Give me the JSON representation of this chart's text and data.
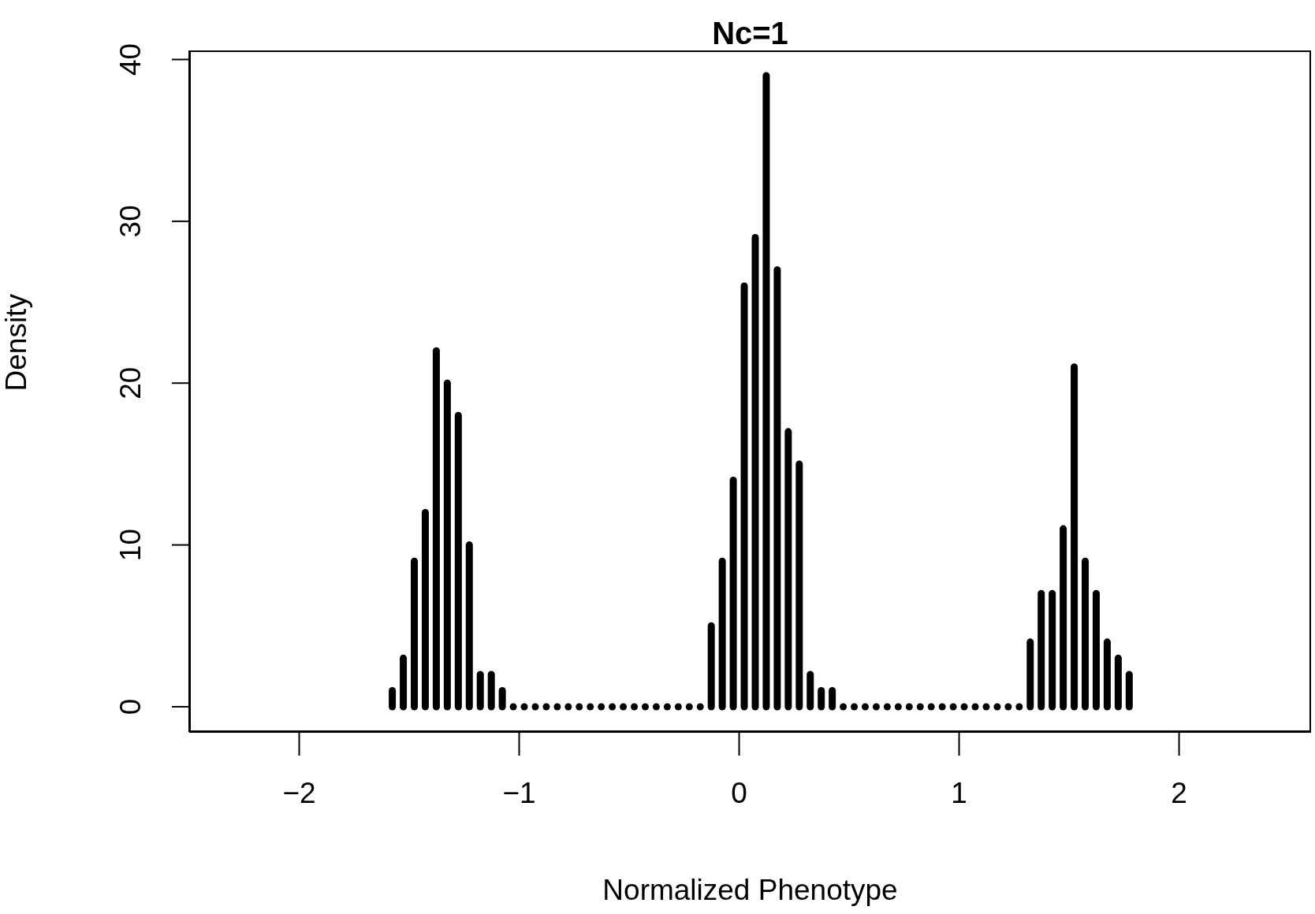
{
  "chart_data": {
    "type": "bar",
    "title": "Nc=1",
    "xlabel": "Normalized Phenotype",
    "ylabel": "Density",
    "x": [
      -1.575,
      -1.525,
      -1.475,
      -1.425,
      -1.375,
      -1.325,
      -1.275,
      -1.225,
      -1.175,
      -1.125,
      -1.075,
      -1.025,
      -0.975,
      -0.925,
      -0.875,
      -0.825,
      -0.775,
      -0.725,
      -0.675,
      -0.625,
      -0.575,
      -0.525,
      -0.475,
      -0.425,
      -0.375,
      -0.325,
      -0.275,
      -0.225,
      -0.175,
      -0.125,
      -0.075,
      -0.025,
      0.025,
      0.075,
      0.125,
      0.175,
      0.225,
      0.275,
      0.325,
      0.375,
      0.425,
      0.475,
      0.525,
      0.575,
      0.625,
      0.675,
      0.725,
      0.775,
      0.825,
      0.875,
      0.925,
      0.975,
      1.025,
      1.075,
      1.125,
      1.175,
      1.225,
      1.275,
      1.325,
      1.375,
      1.425,
      1.475,
      1.525,
      1.575,
      1.625,
      1.675,
      1.725,
      1.775
    ],
    "values": [
      1,
      3,
      9,
      12,
      22,
      20,
      18,
      10,
      2,
      2,
      1,
      0,
      0,
      0,
      0,
      0,
      0,
      0,
      0,
      0,
      0,
      0,
      0,
      0,
      0,
      0,
      0,
      0,
      0,
      5,
      9,
      14,
      26,
      29,
      39,
      27,
      17,
      15,
      2,
      1,
      1,
      0,
      0,
      0,
      0,
      0,
      0,
      0,
      0,
      0,
      0,
      0,
      0,
      0,
      0,
      0,
      0,
      0,
      4,
      7,
      7,
      11,
      21,
      9,
      7,
      4,
      3,
      2
    ],
    "color": "#000000",
    "xlim": [
      -2.5,
      2.6
    ],
    "xticks": [
      {
        "value": -2,
        "label": "−2"
      },
      {
        "value": -1,
        "label": "−1"
      },
      0,
      1,
      2
    ],
    "ylim": [
      -1.56,
      40.56
    ],
    "yticks": [
      0,
      10,
      20,
      30,
      40
    ]
  }
}
